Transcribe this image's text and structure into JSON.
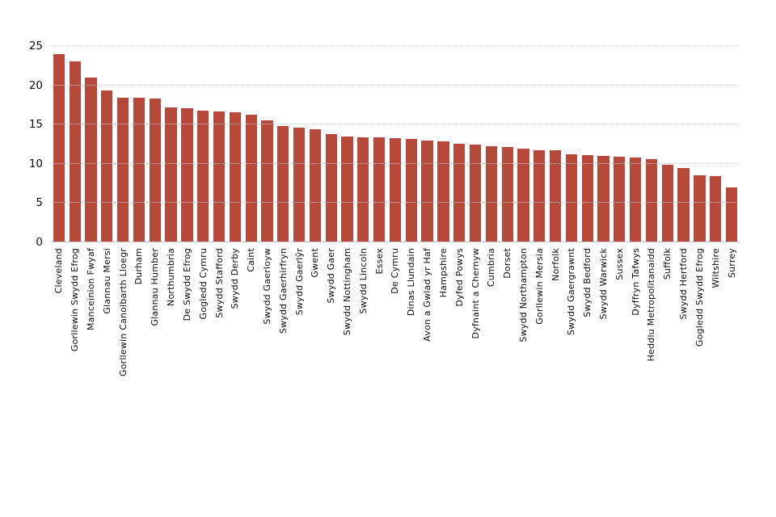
{
  "chart_data": {
    "type": "bar",
    "title": "",
    "xlabel": "",
    "ylabel": "",
    "ylim": [
      0,
      25
    ],
    "yticks": [
      0,
      5,
      10,
      15,
      20,
      25
    ],
    "grid": true,
    "legend": false,
    "bar_color": "#b6493a",
    "categories": [
      "Cleveland",
      "Gorllewin Swydd Efrog",
      "Manceinion Fwyaf",
      "Glannau Mersi",
      "Gorllewin Canolbarth Lloegr",
      "Durham",
      "Glannau Humber",
      "Northumbria",
      "De Swydd Efrog",
      "Gogledd Cymru",
      "Swydd Stafford",
      "Swydd Derby",
      "Caint",
      "Swydd Gaerloyw",
      "Swydd Gaerhirfryn",
      "Swydd Gaerlŷr",
      "Gwent",
      "Swydd Gaer",
      "Swydd Nottingham",
      "Swydd Lincoln",
      "Essex",
      "De Cymru",
      "Dinas Llundain",
      "Avon a Gwlad yr Haf",
      "Hampshire",
      "Dyfed Powys",
      "Dyfnaint a Chernyw",
      "Cumbria",
      "Dorset",
      "Swydd Northampton",
      "Gorllewin Mersia",
      "Norfolk",
      "Swydd Gaergrawnt",
      "Swydd Bedford",
      "Swydd Warwick",
      "Sussex",
      "Dyffryn Tafwys",
      "Heddlu Metropolitanaidd",
      "Suffolk",
      "Swydd Hertford",
      "Gogledd Swydd Efrog",
      "Wiltshire",
      "Surrey"
    ],
    "values": [
      24,
      23,
      21,
      19.3,
      18.4,
      18.4,
      18.3,
      17.2,
      17.1,
      16.8,
      16.7,
      16.6,
      16.3,
      15.5,
      14.8,
      14.6,
      14.4,
      13.8,
      13.5,
      13.4,
      13.4,
      13.3,
      13.2,
      13,
      12.9,
      12.6,
      12.5,
      12.2,
      12.1,
      11.9,
      11.7,
      11.7,
      11.2,
      11.1,
      11,
      10.9,
      10.8,
      10.6,
      9.9,
      9.5,
      8.5,
      8.4,
      7
    ]
  }
}
